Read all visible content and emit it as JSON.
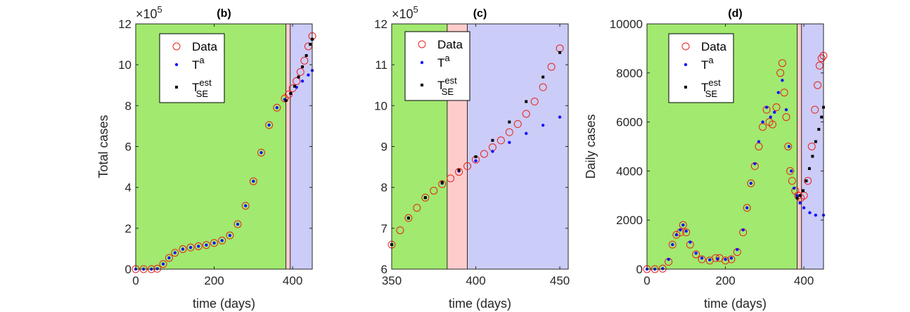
{
  "figure": {
    "background": "#ffffff"
  },
  "colors": {
    "green_region": "#a1e96f",
    "red_region": "#ffcccc",
    "blue_region": "#ccccf8",
    "data_marker": "#e8221b",
    "ta_marker": "#1414ff",
    "est_marker": "#000000",
    "axis": "#262626"
  },
  "chart_data": [
    {
      "type": "scatter",
      "panel": "b",
      "title": "(b)",
      "xlabel": "time (days)",
      "ylabel": "Total cases",
      "exponent_label": "×10",
      "exponent_power": "5",
      "xlim": [
        0,
        450
      ],
      "ylim": [
        0,
        12
      ],
      "xticks": [
        0,
        200,
        400
      ],
      "yticks": [
        0,
        2,
        4,
        6,
        8,
        10,
        12
      ],
      "regions": [
        {
          "name": "fit",
          "color": "green_region",
          "x0": 0,
          "x1": 383
        },
        {
          "name": "transition",
          "color": "red_region",
          "x0": 383,
          "x1": 394
        },
        {
          "name": "forecast",
          "color": "blue_region",
          "x0": 394,
          "x1": 450
        }
      ],
      "legend": {
        "position": "top-left",
        "entries": [
          {
            "series": "data",
            "label": "Data"
          },
          {
            "series": "ta",
            "label": "T",
            "sup": "a"
          },
          {
            "series": "est",
            "label": "T",
            "sup": "est",
            "sub": "SE"
          }
        ]
      },
      "series": {
        "data": {
          "marker": "circle",
          "points": [
            [
              0,
              0
            ],
            [
              20,
              0
            ],
            [
              40,
              0
            ],
            [
              55,
              0.02
            ],
            [
              70,
              0.25
            ],
            [
              85,
              0.55
            ],
            [
              100,
              0.8
            ],
            [
              120,
              0.98
            ],
            [
              140,
              1.06
            ],
            [
              160,
              1.12
            ],
            [
              180,
              1.18
            ],
            [
              200,
              1.28
            ],
            [
              220,
              1.4
            ],
            [
              240,
              1.65
            ],
            [
              260,
              2.2
            ],
            [
              280,
              3.1
            ],
            [
              300,
              4.3
            ],
            [
              320,
              5.7
            ],
            [
              340,
              7.05
            ],
            [
              360,
              7.9
            ],
            [
              380,
              8.35
            ],
            [
              390,
              8.55
            ],
            [
              400,
              8.85
            ],
            [
              410,
              9.2
            ],
            [
              420,
              9.65
            ],
            [
              430,
              10.2
            ],
            [
              440,
              10.9
            ],
            [
              450,
              11.4
            ]
          ]
        },
        "ta": {
          "marker": "dot",
          "points": [
            [
              0,
              0
            ],
            [
              20,
              0
            ],
            [
              40,
              0
            ],
            [
              55,
              0.02
            ],
            [
              70,
              0.25
            ],
            [
              85,
              0.55
            ],
            [
              100,
              0.8
            ],
            [
              120,
              0.98
            ],
            [
              140,
              1.06
            ],
            [
              160,
              1.12
            ],
            [
              180,
              1.18
            ],
            [
              200,
              1.28
            ],
            [
              220,
              1.4
            ],
            [
              240,
              1.65
            ],
            [
              260,
              2.2
            ],
            [
              280,
              3.1
            ],
            [
              300,
              4.3
            ],
            [
              320,
              5.7
            ],
            [
              340,
              7.05
            ],
            [
              360,
              7.9
            ],
            [
              380,
              8.3
            ],
            [
              395,
              8.6
            ],
            [
              410,
              8.9
            ],
            [
              425,
              9.2
            ],
            [
              440,
              9.5
            ],
            [
              450,
              9.72
            ]
          ]
        },
        "est": {
          "marker": "square",
          "points": [
            [
              383,
              8.25
            ],
            [
              395,
              8.6
            ],
            [
              405,
              8.95
            ],
            [
              415,
              9.4
            ],
            [
              425,
              9.9
            ],
            [
              435,
              10.45
            ],
            [
              445,
              11.0
            ],
            [
              450,
              11.25
            ]
          ]
        }
      }
    },
    {
      "type": "scatter",
      "panel": "c",
      "title": "(c)",
      "xlabel": "time (days)",
      "ylabel": "",
      "exponent_label": "×10",
      "exponent_power": "5",
      "xlim": [
        350,
        455
      ],
      "ylim": [
        6,
        12
      ],
      "xticks": [
        350,
        400,
        450
      ],
      "yticks": [
        6,
        7,
        8,
        9,
        10,
        11,
        12
      ],
      "regions": [
        {
          "name": "fit",
          "color": "green_region",
          "x0": 350,
          "x1": 383
        },
        {
          "name": "transition",
          "color": "red_region",
          "x0": 383,
          "x1": 395
        },
        {
          "name": "forecast",
          "color": "blue_region",
          "x0": 395,
          "x1": 455
        }
      ],
      "legend": {
        "position": "top-left",
        "entries": [
          {
            "series": "data",
            "label": "Data"
          },
          {
            "series": "ta",
            "label": "T",
            "sup": "a"
          },
          {
            "series": "est",
            "label": "T",
            "sup": "est",
            "sub": "SE"
          }
        ]
      },
      "series": {
        "data": {
          "marker": "circle",
          "points": [
            [
              350,
              6.6
            ],
            [
              355,
              6.95
            ],
            [
              360,
              7.25
            ],
            [
              365,
              7.5
            ],
            [
              370,
              7.75
            ],
            [
              375,
              7.92
            ],
            [
              380,
              8.08
            ],
            [
              385,
              8.22
            ],
            [
              390,
              8.38
            ],
            [
              395,
              8.52
            ],
            [
              400,
              8.68
            ],
            [
              405,
              8.82
            ],
            [
              410,
              8.98
            ],
            [
              415,
              9.15
            ],
            [
              420,
              9.35
            ],
            [
              425,
              9.55
            ],
            [
              430,
              9.8
            ],
            [
              435,
              10.1
            ],
            [
              440,
              10.45
            ],
            [
              445,
              10.95
            ],
            [
              450,
              11.4
            ]
          ]
        },
        "ta": {
          "marker": "dot",
          "points": [
            [
              350,
              6.6
            ],
            [
              360,
              7.25
            ],
            [
              370,
              7.75
            ],
            [
              380,
              8.1
            ],
            [
              390,
              8.4
            ],
            [
              400,
              8.65
            ],
            [
              410,
              8.88
            ],
            [
              420,
              9.1
            ],
            [
              430,
              9.32
            ],
            [
              440,
              9.52
            ],
            [
              450,
              9.72
            ]
          ]
        },
        "est": {
          "marker": "square",
          "points": [
            [
              350,
              6.6
            ],
            [
              360,
              7.25
            ],
            [
              370,
              7.75
            ],
            [
              380,
              8.12
            ],
            [
              390,
              8.42
            ],
            [
              400,
              8.75
            ],
            [
              410,
              9.15
            ],
            [
              420,
              9.6
            ],
            [
              430,
              10.1
            ],
            [
              440,
              10.7
            ],
            [
              450,
              11.3
            ]
          ]
        }
      }
    },
    {
      "type": "scatter",
      "panel": "d",
      "title": "(d)",
      "xlabel": "time (days)",
      "ylabel": "Daily cases",
      "xlim": [
        0,
        450
      ],
      "ylim": [
        0,
        10000
      ],
      "xticks": [
        0,
        200,
        400
      ],
      "yticks": [
        0,
        2000,
        4000,
        6000,
        8000,
        10000
      ],
      "regions": [
        {
          "name": "fit",
          "color": "green_region",
          "x0": 0,
          "x1": 383
        },
        {
          "name": "transition",
          "color": "red_region",
          "x0": 383,
          "x1": 394
        },
        {
          "name": "forecast",
          "color": "blue_region",
          "x0": 394,
          "x1": 450
        }
      ],
      "legend": {
        "position": "top-left",
        "entries": [
          {
            "series": "data",
            "label": "Data"
          },
          {
            "series": "ta",
            "label": "T",
            "sup": "a"
          },
          {
            "series": "est",
            "label": "T",
            "sup": "est",
            "sub": "SE"
          }
        ]
      },
      "series": {
        "data": {
          "marker": "circle",
          "points": [
            [
              0,
              0
            ],
            [
              20,
              0
            ],
            [
              40,
              20
            ],
            [
              55,
              300
            ],
            [
              65,
              1000
            ],
            [
              75,
              1400
            ],
            [
              85,
              1500
            ],
            [
              92,
              1800
            ],
            [
              100,
              1500
            ],
            [
              110,
              1000
            ],
            [
              125,
              600
            ],
            [
              140,
              400
            ],
            [
              160,
              350
            ],
            [
              175,
              450
            ],
            [
              185,
              450
            ],
            [
              200,
              350
            ],
            [
              215,
              400
            ],
            [
              230,
              700
            ],
            [
              245,
              1500
            ],
            [
              255,
              2500
            ],
            [
              265,
              3500
            ],
            [
              275,
              4200
            ],
            [
              285,
              5000
            ],
            [
              295,
              5800
            ],
            [
              305,
              6500
            ],
            [
              312,
              6000
            ],
            [
              320,
              5900
            ],
            [
              330,
              6600
            ],
            [
              340,
              8000
            ],
            [
              345,
              8400
            ],
            [
              350,
              7200
            ],
            [
              355,
              6200
            ],
            [
              360,
              5000
            ],
            [
              365,
              4000
            ],
            [
              370,
              3600
            ],
            [
              378,
              3200
            ],
            [
              385,
              3000
            ],
            [
              392,
              2900
            ],
            [
              400,
              3000
            ],
            [
              410,
              3600
            ],
            [
              420,
              5000
            ],
            [
              428,
              6500
            ],
            [
              435,
              7500
            ],
            [
              440,
              8300
            ],
            [
              445,
              8600
            ],
            [
              450,
              8700
            ]
          ]
        },
        "ta": {
          "marker": "dot",
          "points": [
            [
              0,
              0
            ],
            [
              20,
              0
            ],
            [
              40,
              20
            ],
            [
              55,
              400
            ],
            [
              65,
              1000
            ],
            [
              75,
              1400
            ],
            [
              85,
              1600
            ],
            [
              92,
              1800
            ],
            [
              100,
              1550
            ],
            [
              110,
              1100
            ],
            [
              125,
              650
            ],
            [
              140,
              450
            ],
            [
              160,
              380
            ],
            [
              180,
              420
            ],
            [
              200,
              400
            ],
            [
              215,
              450
            ],
            [
              230,
              800
            ],
            [
              245,
              1600
            ],
            [
              255,
              2500
            ],
            [
              265,
              3500
            ],
            [
              275,
              4300
            ],
            [
              285,
              5200
            ],
            [
              295,
              6000
            ],
            [
              305,
              6600
            ],
            [
              315,
              6200
            ],
            [
              325,
              6400
            ],
            [
              335,
              7200
            ],
            [
              345,
              7700
            ],
            [
              355,
              6500
            ],
            [
              362,
              5000
            ],
            [
              368,
              4000
            ],
            [
              375,
              3300
            ],
            [
              382,
              3000
            ],
            [
              390,
              2700
            ],
            [
              400,
              2500
            ],
            [
              415,
              2300
            ],
            [
              430,
              2200
            ],
            [
              450,
              2200
            ]
          ]
        },
        "est": {
          "marker": "square",
          "points": [
            [
              383,
              2900
            ],
            [
              390,
              3000
            ],
            [
              398,
              3200
            ],
            [
              406,
              3600
            ],
            [
              414,
              4100
            ],
            [
              422,
              4600
            ],
            [
              430,
              5200
            ],
            [
              438,
              5700
            ],
            [
              445,
              6200
            ],
            [
              450,
              6600
            ]
          ]
        }
      }
    }
  ]
}
